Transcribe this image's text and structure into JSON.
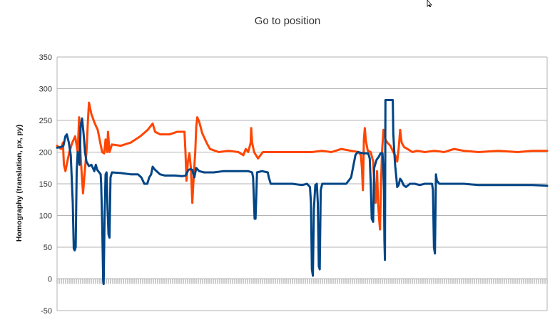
{
  "chart_data": {
    "type": "line",
    "title": "Go to position",
    "ylabel": "Homography (translation, px, py)",
    "xlabel": "",
    "ylim": [
      -50,
      350
    ],
    "yticks": [
      -50,
      0,
      50,
      100,
      150,
      200,
      250,
      300,
      350
    ],
    "grid": true,
    "legend": "none",
    "xlim": [
      0,
      1000
    ],
    "series": [
      {
        "color": "#FF4500",
        "points": [
          [
            0,
            210
          ],
          [
            8,
            205
          ],
          [
            12,
            215
          ],
          [
            14,
            180
          ],
          [
            17,
            170
          ],
          [
            21,
            185
          ],
          [
            25,
            200
          ],
          [
            31,
            215
          ],
          [
            37,
            225
          ],
          [
            42,
            200
          ],
          [
            45,
            255
          ],
          [
            48,
            195
          ],
          [
            50,
            170
          ],
          [
            53,
            135
          ],
          [
            56,
            165
          ],
          [
            60,
            200
          ],
          [
            63,
            250
          ],
          [
            65,
            278
          ],
          [
            70,
            260
          ],
          [
            77,
            245
          ],
          [
            83,
            235
          ],
          [
            88,
            215
          ],
          [
            92,
            200
          ],
          [
            96,
            198
          ],
          [
            99,
            220
          ],
          [
            102,
            200
          ],
          [
            104,
            232
          ],
          [
            107,
            200
          ],
          [
            112,
            212
          ],
          [
            130,
            210
          ],
          [
            150,
            215
          ],
          [
            170,
            225
          ],
          [
            185,
            235
          ],
          [
            195,
            245
          ],
          [
            200,
            232
          ],
          [
            210,
            228
          ],
          [
            230,
            228
          ],
          [
            245,
            232
          ],
          [
            260,
            232
          ],
          [
            262,
            200
          ],
          [
            264,
            155
          ],
          [
            267,
            185
          ],
          [
            270,
            198
          ],
          [
            273,
            175
          ],
          [
            276,
            120
          ],
          [
            279,
            165
          ],
          [
            282,
            200
          ],
          [
            284,
            240
          ],
          [
            286,
            255
          ],
          [
            290,
            248
          ],
          [
            296,
            230
          ],
          [
            305,
            215
          ],
          [
            312,
            205
          ],
          [
            330,
            200
          ],
          [
            350,
            202
          ],
          [
            370,
            200
          ],
          [
            380,
            195
          ],
          [
            385,
            205
          ],
          [
            390,
            200
          ],
          [
            395,
            215
          ],
          [
            396,
            238
          ],
          [
            398,
            215
          ],
          [
            402,
            200
          ],
          [
            410,
            190
          ],
          [
            420,
            200
          ],
          [
            440,
            200
          ],
          [
            460,
            200
          ],
          [
            480,
            200
          ],
          [
            500,
            200
          ],
          [
            520,
            200
          ],
          [
            540,
            202
          ],
          [
            560,
            200
          ],
          [
            580,
            205
          ],
          [
            600,
            202
          ],
          [
            615,
            200
          ],
          [
            620,
            195
          ],
          [
            622,
            175
          ],
          [
            624,
            140
          ],
          [
            626,
            220
          ],
          [
            628,
            238
          ],
          [
            630,
            218
          ],
          [
            634,
            202
          ],
          [
            640,
            200
          ],
          [
            645,
            185
          ],
          [
            648,
            140
          ],
          [
            650,
            120
          ],
          [
            653,
            170
          ],
          [
            655,
            120
          ],
          [
            657,
            95
          ],
          [
            659,
            78
          ],
          [
            661,
            150
          ],
          [
            663,
            200
          ],
          [
            666,
            235
          ],
          [
            670,
            220
          ],
          [
            674,
            215
          ],
          [
            680,
            210
          ],
          [
            686,
            200
          ],
          [
            690,
            195
          ],
          [
            694,
            185
          ],
          [
            697,
            205
          ],
          [
            700,
            235
          ],
          [
            703,
            215
          ],
          [
            708,
            208
          ],
          [
            715,
            205
          ],
          [
            725,
            200
          ],
          [
            735,
            202
          ],
          [
            750,
            200
          ],
          [
            770,
            202
          ],
          [
            790,
            200
          ],
          [
            810,
            205
          ],
          [
            830,
            202
          ],
          [
            860,
            200
          ],
          [
            900,
            202
          ],
          [
            940,
            200
          ],
          [
            970,
            202
          ],
          [
            1000,
            202
          ]
        ]
      },
      {
        "color": "#004586",
        "points": [
          [
            0,
            207
          ],
          [
            8,
            208
          ],
          [
            13,
            210
          ],
          [
            17,
            225
          ],
          [
            20,
            228
          ],
          [
            24,
            215
          ],
          [
            28,
            195
          ],
          [
            32,
            120
          ],
          [
            34,
            48
          ],
          [
            36,
            45
          ],
          [
            38,
            50
          ],
          [
            40,
            170
          ],
          [
            42,
            200
          ],
          [
            44,
            190
          ],
          [
            46,
            180
          ],
          [
            48,
            240
          ],
          [
            51,
            253
          ],
          [
            54,
            230
          ],
          [
            57,
            200
          ],
          [
            60,
            185
          ],
          [
            65,
            178
          ],
          [
            70,
            180
          ],
          [
            73,
            175
          ],
          [
            76,
            170
          ],
          [
            79,
            180
          ],
          [
            82,
            172
          ],
          [
            86,
            168
          ],
          [
            89,
            165
          ],
          [
            90,
            150
          ],
          [
            92,
            90
          ],
          [
            94,
            0
          ],
          [
            95,
            -8
          ],
          [
            97,
            95
          ],
          [
            99,
            165
          ],
          [
            101,
            168
          ],
          [
            103,
            110
          ],
          [
            105,
            70
          ],
          [
            107,
            65
          ],
          [
            109,
            160
          ],
          [
            112,
            168
          ],
          [
            130,
            167
          ],
          [
            150,
            165
          ],
          [
            165,
            165
          ],
          [
            172,
            160
          ],
          [
            178,
            150
          ],
          [
            184,
            150
          ],
          [
            188,
            160
          ],
          [
            192,
            165
          ],
          [
            195,
            177
          ],
          [
            197,
            175
          ],
          [
            200,
            172
          ],
          [
            210,
            165
          ],
          [
            220,
            163
          ],
          [
            240,
            163
          ],
          [
            255,
            162
          ],
          [
            262,
            163
          ],
          [
            268,
            172
          ],
          [
            272,
            173
          ],
          [
            276,
            172
          ],
          [
            280,
            160
          ],
          [
            284,
            175
          ],
          [
            290,
            170
          ],
          [
            300,
            168
          ],
          [
            320,
            168
          ],
          [
            340,
            170
          ],
          [
            360,
            170
          ],
          [
            390,
            170
          ],
          [
            398,
            168
          ],
          [
            400,
            160
          ],
          [
            403,
            95
          ],
          [
            405,
            95
          ],
          [
            408,
            168
          ],
          [
            418,
            170
          ],
          [
            430,
            168
          ],
          [
            432,
            160
          ],
          [
            436,
            150
          ],
          [
            445,
            150
          ],
          [
            460,
            150
          ],
          [
            480,
            150
          ],
          [
            500,
            148
          ],
          [
            510,
            150
          ],
          [
            516,
            145
          ],
          [
            518,
            120
          ],
          [
            520,
            15
          ],
          [
            522,
            5
          ],
          [
            524,
            110
          ],
          [
            527,
            148
          ],
          [
            530,
            150
          ],
          [
            532,
            120
          ],
          [
            534,
            20
          ],
          [
            536,
            15
          ],
          [
            538,
            140
          ],
          [
            541,
            150
          ],
          [
            550,
            150
          ],
          [
            570,
            150
          ],
          [
            590,
            150
          ],
          [
            600,
            160
          ],
          [
            605,
            180
          ],
          [
            609,
            196
          ],
          [
            614,
            200
          ],
          [
            625,
            198
          ],
          [
            635,
            198
          ],
          [
            638,
            190
          ],
          [
            640,
            150
          ],
          [
            642,
            95
          ],
          [
            645,
            90
          ],
          [
            647,
            175
          ],
          [
            652,
            188
          ],
          [
            656,
            192
          ],
          [
            660,
            198
          ],
          [
            664,
            198
          ],
          [
            666,
            170
          ],
          [
            667,
            140
          ],
          [
            668,
            60
          ],
          [
            669,
            30
          ],
          [
            670,
            282
          ],
          [
            685,
            282
          ],
          [
            686,
            230
          ],
          [
            688,
            200
          ],
          [
            690,
            178
          ],
          [
            692,
            162
          ],
          [
            694,
            145
          ],
          [
            697,
            148
          ],
          [
            700,
            158
          ],
          [
            703,
            155
          ],
          [
            707,
            148
          ],
          [
            712,
            145
          ],
          [
            720,
            150
          ],
          [
            730,
            150
          ],
          [
            740,
            148
          ],
          [
            750,
            150
          ],
          [
            765,
            150
          ],
          [
            767,
            140
          ],
          [
            769,
            50
          ],
          [
            771,
            40
          ],
          [
            773,
            165
          ],
          [
            775,
            155
          ],
          [
            780,
            150
          ],
          [
            800,
            150
          ],
          [
            830,
            150
          ],
          [
            860,
            148
          ],
          [
            900,
            148
          ],
          [
            940,
            148
          ],
          [
            970,
            148
          ],
          [
            1000,
            147
          ]
        ]
      }
    ]
  }
}
